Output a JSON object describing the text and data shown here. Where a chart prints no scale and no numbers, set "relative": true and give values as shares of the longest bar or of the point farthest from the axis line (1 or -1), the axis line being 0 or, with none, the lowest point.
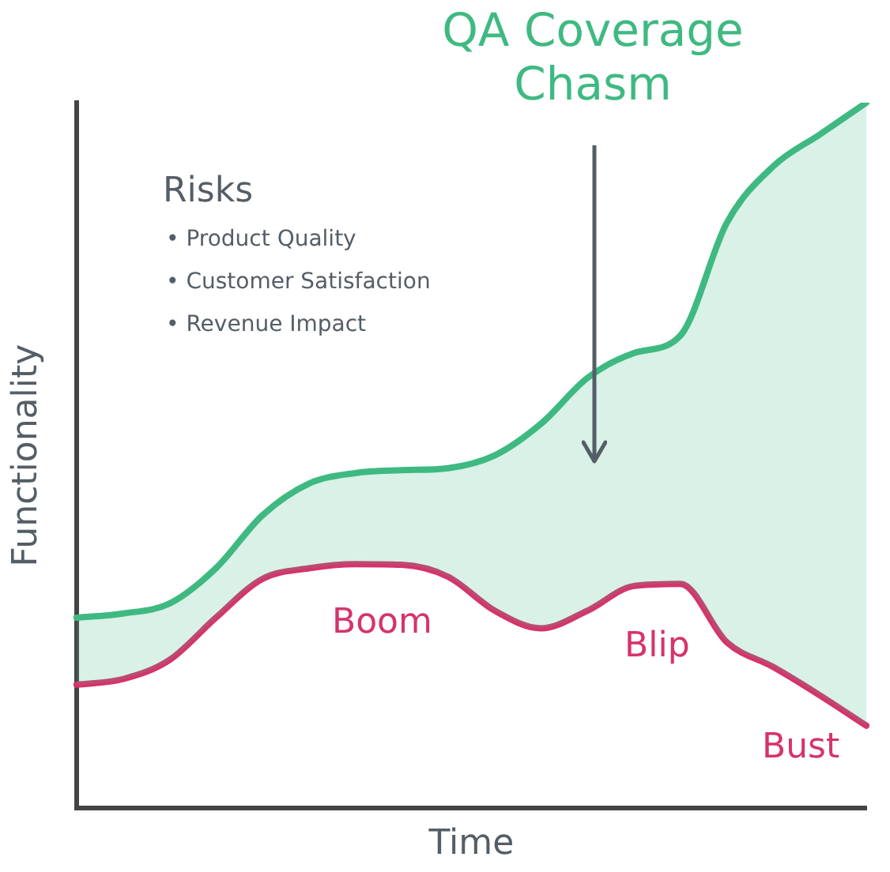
{
  "chart_data": {
    "type": "line",
    "title": "QA Coverage Chasm",
    "xlabel": "Time",
    "ylabel": "Functionality",
    "relative": true,
    "grid": false,
    "legend": false,
    "marker": "none",
    "line_style": "solid",
    "categories": [
      null,
      null,
      null,
      null,
      null,
      null,
      null,
      null,
      null,
      null,
      null,
      null,
      null,
      null,
      null,
      null,
      null,
      null
    ],
    "series": [
      {
        "type": "area",
        "color": "#3fb982",
        "values": [
          0.27,
          0.276,
          0.29,
          0.34,
          0.415,
          0.46,
          0.475,
          0.479,
          0.482,
          0.5,
          0.545,
          0.61,
          0.645,
          0.67,
          0.83,
          0.91,
          0.955,
          1.0
        ]
      },
      {
        "color": "#d6336c",
        "values": [
          0.175,
          0.183,
          0.21,
          0.27,
          0.325,
          0.34,
          0.346,
          0.345,
          0.328,
          0.28,
          0.255,
          0.28,
          0.315,
          0.318,
          0.235,
          0.2,
          0.16,
          0.117
        ]
      }
    ],
    "annotations": [
      "Risks",
      "• Product Quality",
      "• Customer Satisfaction",
      "• Revenue Impact",
      "Boom",
      "Blip",
      "Bust"
    ]
  }
}
